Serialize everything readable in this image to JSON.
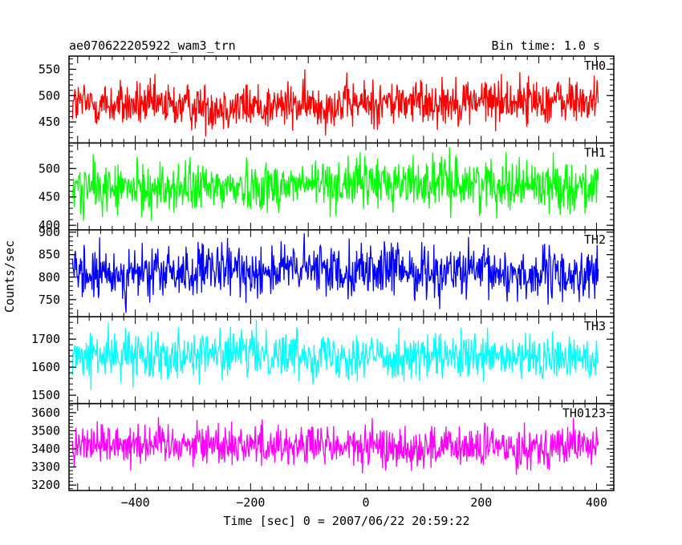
{
  "chart_data": {
    "type": "line",
    "title_left": "ae070622205922_wam3_trn",
    "title_right": "Bin time: 1.0 s",
    "xlabel": "Time [sec] 0 = 2007/06/22 20:59:22",
    "ylabel": "Counts/sec",
    "xlim": [
      -515,
      430
    ],
    "data_x_range": [
      -509,
      403
    ],
    "bin_time_s": 1.0,
    "x_ticks": [
      -400,
      -200,
      0,
      200,
      400
    ],
    "grid": false,
    "panels": [
      {
        "name": "TH0",
        "color": "#ff0000",
        "ylim": [
          410,
          575
        ],
        "y_ticks": [
          450,
          500,
          550
        ],
        "mean": 485,
        "spread": 22
      },
      {
        "name": "TH1",
        "color": "#00ff00",
        "ylim": [
          392,
          545
        ],
        "y_ticks": [
          400,
          450,
          500
        ],
        "mean": 470,
        "spread": 22
      },
      {
        "name": "TH2",
        "color": "#0000ff",
        "ylim": [
          712,
          905
        ],
        "y_ticks": [
          750,
          800,
          850,
          900
        ],
        "mean": 810,
        "spread": 29
      },
      {
        "name": "TH3",
        "color": "#00ffff",
        "ylim": [
          1470,
          1780
        ],
        "y_ticks": [
          1500,
          1600,
          1700
        ],
        "mean": 1640,
        "spread": 41
      },
      {
        "name": "TH0123",
        "color": "#ff00ff",
        "ylim": [
          3170,
          3650
        ],
        "y_ticks": [
          3200,
          3300,
          3400,
          3500,
          3600
        ],
        "mean": 3420,
        "spread": 58
      }
    ]
  }
}
